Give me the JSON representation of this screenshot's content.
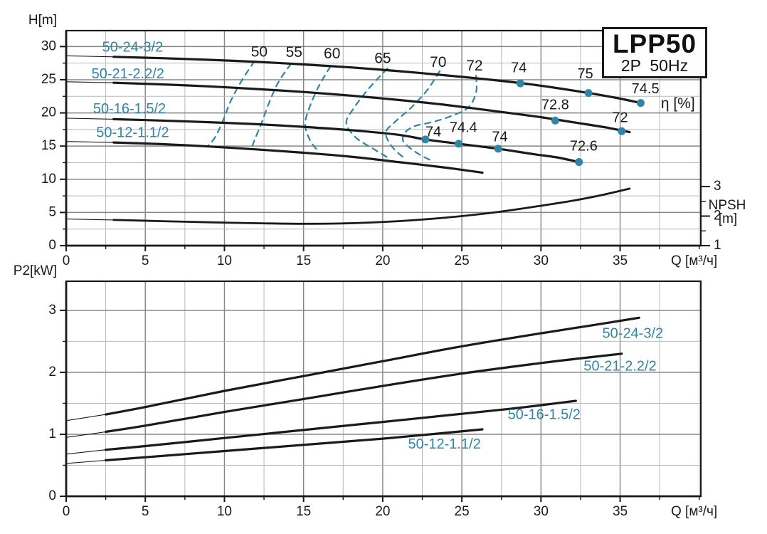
{
  "title_box": {
    "model": "LPP50",
    "spec": "2P  50Hz"
  },
  "colors": {
    "line": "#1a1a1a",
    "teal": "#2e85a7",
    "grid_minor": "#b9b9b9",
    "grid_major": "#858585",
    "background": "#ffffff"
  },
  "chart_data": [
    {
      "id": "head-chart",
      "type": "line",
      "ylabel": "H[m]",
      "xlabel": "Q [м³/ч]",
      "xlim": [
        0,
        40.1
      ],
      "ylim": [
        0,
        32.4
      ],
      "x_major_ticks": [
        0,
        5,
        10,
        15,
        20,
        25,
        30,
        35
      ],
      "x_minor_step": 2.5,
      "y_major_ticks": [
        0,
        5,
        10,
        15,
        20,
        25,
        30
      ],
      "y_minor_step": 2.5,
      "grid": true,
      "series": [
        {
          "name": "50-24-3/2",
          "label_at": [
            4.2,
            29.8
          ],
          "thin_until": 3,
          "points": [
            [
              0,
              28.6
            ],
            [
              3,
              28.45
            ],
            [
              6,
              28.25
            ],
            [
              9,
              28.0
            ],
            [
              12,
              27.7
            ],
            [
              15,
              27.3
            ],
            [
              18,
              26.85
            ],
            [
              21,
              26.3
            ],
            [
              24,
              25.65
            ],
            [
              27,
              24.95
            ],
            [
              30,
              24.1
            ],
            [
              33,
              23.0
            ],
            [
              35,
              22.15
            ],
            [
              36.3,
              21.5
            ]
          ]
        },
        {
          "name": "50-21-2.2/2",
          "label_at": [
            3.9,
            25.8
          ],
          "thin_until": 3,
          "points": [
            [
              0,
              24.7
            ],
            [
              3,
              24.55
            ],
            [
              6,
              24.3
            ],
            [
              9,
              24.0
            ],
            [
              12,
              23.6
            ],
            [
              15,
              23.15
            ],
            [
              18,
              22.6
            ],
            [
              21,
              21.95
            ],
            [
              24,
              21.2
            ],
            [
              27,
              20.3
            ],
            [
              30,
              19.35
            ],
            [
              32,
              18.6
            ],
            [
              34,
              17.85
            ],
            [
              35.6,
              17.1
            ]
          ]
        },
        {
          "name": "50-16-1.5/2",
          "label_at": [
            4.0,
            20.5
          ],
          "thin_until": 3,
          "points": [
            [
              0,
              19.2
            ],
            [
              3,
              19.05
            ],
            [
              6,
              18.85
            ],
            [
              9,
              18.6
            ],
            [
              12,
              18.3
            ],
            [
              15,
              17.9
            ],
            [
              18,
              17.4
            ],
            [
              21,
              16.7
            ],
            [
              22.7,
              16.0
            ],
            [
              24.8,
              15.35
            ],
            [
              27.3,
              14.6
            ],
            [
              29.5,
              13.8
            ],
            [
              31,
              13.3
            ],
            [
              32.4,
              12.6
            ]
          ]
        },
        {
          "name": "50-12-1.1/2",
          "label_at": [
            4.2,
            16.95
          ],
          "thin_until": 3,
          "points": [
            [
              0,
              15.7
            ],
            [
              3,
              15.55
            ],
            [
              6,
              15.3
            ],
            [
              9,
              14.95
            ],
            [
              12,
              14.5
            ],
            [
              15,
              14.0
            ],
            [
              18,
              13.4
            ],
            [
              21,
              12.6
            ],
            [
              24,
              11.75
            ],
            [
              26.3,
              11.0
            ]
          ]
        }
      ],
      "efficiency_contours": [
        {
          "label": "50",
          "label_at": [
            12.2,
            29.1
          ],
          "points": [
            [
              11.9,
              27.8
            ],
            [
              11.1,
              24.9
            ],
            [
              10.4,
              21.8
            ],
            [
              9.9,
              18.8
            ],
            [
              9.4,
              16.3
            ],
            [
              8.9,
              14.9
            ]
          ]
        },
        {
          "label": "55",
          "label_at": [
            14.4,
            29.0
          ],
          "points": [
            [
              14.2,
              27.4
            ],
            [
              13.4,
              24.6
            ],
            [
              12.8,
              21.4
            ],
            [
              12.3,
              18.2
            ],
            [
              11.9,
              15.9
            ],
            [
              11.7,
              14.5
            ]
          ]
        },
        {
          "label": "60",
          "label_at": [
            16.8,
            28.8
          ],
          "points": [
            [
              16.7,
              27.0
            ],
            [
              16.0,
              24.2
            ],
            [
              15.4,
              21.0
            ],
            [
              15.1,
              18.3
            ],
            [
              15.4,
              15.9
            ],
            [
              15.9,
              14.3
            ]
          ]
        },
        {
          "label": "65",
          "label_at": [
            20.0,
            28.1
          ],
          "points": [
            [
              20.3,
              26.7
            ],
            [
              19.2,
              23.9
            ],
            [
              18.2,
              20.8
            ],
            [
              17.7,
              18.5
            ],
            [
              18.3,
              16.3
            ],
            [
              19.4,
              14.6
            ],
            [
              20.5,
              13.0
            ]
          ]
        },
        {
          "label": "70",
          "label_at": [
            23.5,
            27.5
          ],
          "points": [
            [
              23.6,
              26.3
            ],
            [
              22.8,
              23.4
            ],
            [
              21.8,
              20.8
            ],
            [
              20.8,
              18.7
            ],
            [
              20.2,
              17.1
            ],
            [
              20.5,
              15.2
            ],
            [
              21.1,
              13.7
            ],
            [
              21.5,
              13.1
            ]
          ]
        },
        {
          "label": "72",
          "label_at": [
            25.8,
            27.0
          ],
          "points": [
            [
              25.9,
              25.6
            ],
            [
              25.9,
              23.1
            ],
            [
              25.4,
              20.8
            ],
            [
              24.3,
              19.5
            ],
            [
              23.1,
              18.6
            ],
            [
              22.0,
              18.0
            ],
            [
              21.4,
              17.0
            ],
            [
              21.3,
              15.7
            ],
            [
              21.9,
              14.4
            ],
            [
              22.5,
              13.5
            ],
            [
              23.1,
              12.8
            ]
          ]
        }
      ],
      "efficiency_points": [
        {
          "label": "74",
          "q": 28.7,
          "v": 24.45,
          "label_at": [
            28.6,
            26.7
          ]
        },
        {
          "label": "75",
          "q": 33.0,
          "v": 23.0,
          "label_at": [
            32.8,
            25.8
          ]
        },
        {
          "label": "74.5",
          "q": 36.3,
          "v": 21.5,
          "label_at": [
            36.6,
            23.5
          ]
        },
        {
          "label": "72.8",
          "q": 30.9,
          "v": 18.85,
          "label_at": [
            30.9,
            21.1
          ]
        },
        {
          "label": "72",
          "q": 35.1,
          "v": 17.25,
          "label_at": [
            35.0,
            19.2
          ]
        },
        {
          "label": "74",
          "q": 22.7,
          "v": 16.0,
          "label_at": [
            23.2,
            17.05
          ]
        },
        {
          "label": "74.4",
          "q": 24.8,
          "v": 15.35,
          "label_at": [
            25.1,
            17.7
          ]
        },
        {
          "label": "74",
          "q": 27.3,
          "v": 14.6,
          "label_at": [
            27.4,
            16.3
          ]
        },
        {
          "label": "72.6",
          "q": 32.4,
          "v": 12.6,
          "label_at": [
            32.7,
            14.9
          ]
        }
      ],
      "eta_axis_label": {
        "text": "η [%]",
        "at": [
          38.65,
          21.3
        ]
      },
      "npsh_axis": {
        "title": "NPSH",
        "unit": "[m]",
        "major_ticks": [
          1,
          2,
          3
        ],
        "minor_step": 0.5,
        "lim": [
          1,
          3.3
        ]
      },
      "npsh_series": {
        "name": "NPSH",
        "thin_until": 3,
        "points": [
          [
            0,
            1.9
          ],
          [
            3,
            1.87
          ],
          [
            6,
            1.83
          ],
          [
            9,
            1.79
          ],
          [
            12,
            1.76
          ],
          [
            15,
            1.74
          ],
          [
            18,
            1.76
          ],
          [
            21,
            1.83
          ],
          [
            24,
            1.95
          ],
          [
            27,
            2.12
          ],
          [
            30,
            2.35
          ],
          [
            32,
            2.52
          ],
          [
            34,
            2.73
          ],
          [
            35.6,
            2.93
          ]
        ]
      }
    },
    {
      "id": "power-chart",
      "type": "line",
      "ylabel": "P2[kW]",
      "xlabel": "Q [м³/ч]",
      "xlim": [
        0,
        40.1
      ],
      "ylim": [
        0,
        3.47
      ],
      "x_major_ticks": [
        0,
        5,
        10,
        15,
        20,
        25,
        30,
        35
      ],
      "x_minor_step": 2.5,
      "y_major_ticks": [
        0,
        1,
        2,
        3
      ],
      "y_minor_step": 0.5,
      "grid": true,
      "series": [
        {
          "name": "50-24-3/2",
          "label_at": [
            35.8,
            2.62
          ],
          "thin_until": 2.5,
          "points": [
            [
              0,
              1.22
            ],
            [
              2.5,
              1.32
            ],
            [
              5,
              1.44
            ],
            [
              10,
              1.7
            ],
            [
              15,
              1.94
            ],
            [
              20,
              2.18
            ],
            [
              25,
              2.42
            ],
            [
              30,
              2.63
            ],
            [
              33,
              2.75
            ],
            [
              36.2,
              2.88
            ]
          ]
        },
        {
          "name": "50-21-2.2/2",
          "label_at": [
            35.0,
            2.09
          ],
          "thin_until": 2.5,
          "points": [
            [
              0,
              0.95
            ],
            [
              2.5,
              1.04
            ],
            [
              5,
              1.14
            ],
            [
              10,
              1.36
            ],
            [
              15,
              1.57
            ],
            [
              20,
              1.78
            ],
            [
              25,
              1.98
            ],
            [
              30,
              2.15
            ],
            [
              33,
              2.24
            ],
            [
              35.1,
              2.3
            ]
          ]
        },
        {
          "name": "50-16-1.5/2",
          "label_at": [
            30.2,
            1.31
          ],
          "thin_until": 2.5,
          "points": [
            [
              0,
              0.68
            ],
            [
              2.5,
              0.75
            ],
            [
              5,
              0.81
            ],
            [
              10,
              0.94
            ],
            [
              15,
              1.07
            ],
            [
              20,
              1.2
            ],
            [
              25,
              1.33
            ],
            [
              28,
              1.41
            ],
            [
              30,
              1.47
            ],
            [
              32.2,
              1.54
            ]
          ]
        },
        {
          "name": "50-12-1.1/2",
          "label_at": [
            23.9,
            0.83
          ],
          "thin_until": 2.5,
          "points": [
            [
              0,
              0.53
            ],
            [
              2.5,
              0.58
            ],
            [
              5,
              0.63
            ],
            [
              10,
              0.73
            ],
            [
              15,
              0.83
            ],
            [
              20,
              0.93
            ],
            [
              23,
              1.0
            ],
            [
              26.3,
              1.08
            ]
          ]
        }
      ]
    }
  ]
}
